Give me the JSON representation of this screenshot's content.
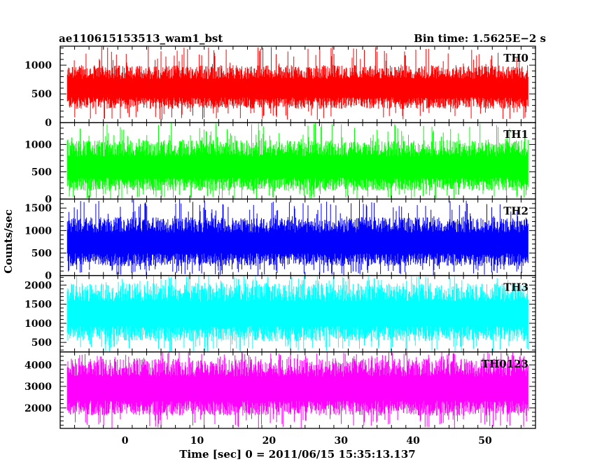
{
  "chart_data": {
    "type": "line",
    "title": "ae110615153513_wam1_bst",
    "subtitle": "Bin time: 1.5625E−2 s",
    "xlabel": "Time [sec] 0 = 2011/06/15 15:35:13.137",
    "ylabel": "Counts/sec",
    "xlim": [
      -9,
      57
    ],
    "x_range_data": [
      -8,
      56
    ],
    "xticks": [
      0,
      10,
      20,
      30,
      40,
      50
    ],
    "grid": false,
    "panels": [
      {
        "name": "TH0",
        "color": "#ff0000",
        "ylim": [
          0,
          1330
        ],
        "yticks": [
          0,
          500,
          1000
        ],
        "typical": [
          200,
          1000
        ],
        "extremes": [
          50,
          1330
        ]
      },
      {
        "name": "TH1",
        "color": "#00ff00",
        "ylim": [
          0,
          1400
        ],
        "yticks": [
          0,
          500,
          1000
        ],
        "typical": [
          100,
          1080
        ],
        "extremes": [
          0,
          1400
        ]
      },
      {
        "name": "TH2",
        "color": "#0000ff",
        "ylim": [
          0,
          1700
        ],
        "yticks": [
          0,
          500,
          1000,
          1500
        ],
        "typical": [
          150,
          1300
        ],
        "extremes": [
          0,
          1700
        ]
      },
      {
        "name": "TH3",
        "color": "#00ffff",
        "ylim": [
          250,
          2250
        ],
        "yticks": [
          500,
          1000,
          1500,
          2000
        ],
        "typical": [
          450,
          2050
        ],
        "extremes": [
          250,
          2250
        ]
      },
      {
        "name": "TH0123",
        "color": "#ff00ff",
        "ylim": [
          1050,
          4600
        ],
        "yticks": [
          2000,
          3000,
          4000
        ],
        "typical": [
          1500,
          4300
        ],
        "extremes": [
          1050,
          4600
        ]
      }
    ]
  }
}
